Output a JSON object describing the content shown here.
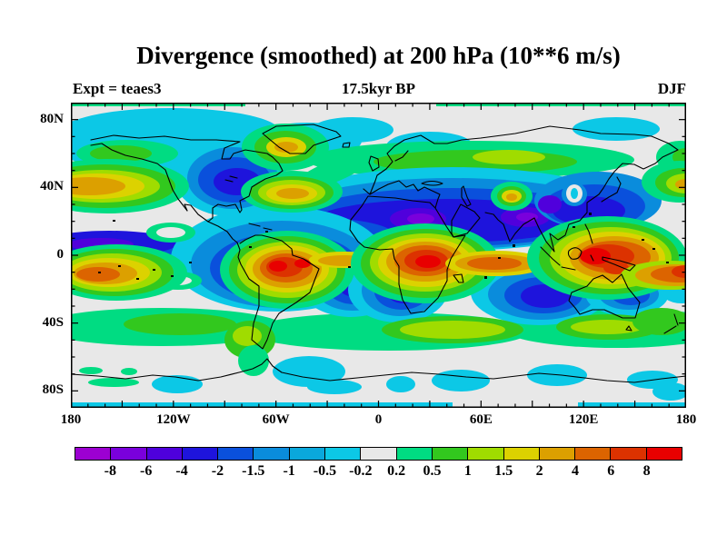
{
  "header": {
    "title": "Divergence (smoothed) at 200 hPa (10**6 m/s)",
    "subtitle": "17.5kyr BP",
    "experiment": "Expt = teaes3",
    "season": "DJF"
  },
  "chart_data": {
    "type": "heatmap",
    "variant": "filled_contour_world_map",
    "projection": "equirectangular",
    "title": "Divergence (smoothed) at 200 hPa (10**6 m/s)",
    "subtitle": "17.5kyr BP",
    "experiment": "teaes3",
    "season": "DJF",
    "units": "10**6 m/s",
    "grid": false,
    "lon_range": [
      -180,
      180
    ],
    "lat_range": [
      -90,
      90
    ],
    "x_ticks": {
      "labels": [
        "180",
        "120W",
        "60W",
        "0",
        "60E",
        "120E",
        "180"
      ],
      "lons": [
        -180,
        -120,
        -60,
        0,
        60,
        120,
        180
      ],
      "minor_step_deg": 10
    },
    "y_ticks": {
      "labels": [
        "80N",
        "40N",
        "0",
        "40S",
        "80S"
      ],
      "lats": [
        80,
        40,
        0,
        -40,
        -80
      ],
      "minor_step_deg": 10
    },
    "colorbar": {
      "boundary_labels": [
        "-8",
        "-6",
        "-4",
        "-2",
        "-1.5",
        "-1",
        "-0.5",
        "-0.2",
        "0.2",
        "0.5",
        "1",
        "1.5",
        "2",
        "4",
        "6",
        "8"
      ],
      "levels": [
        -8,
        -6,
        -4,
        -2,
        -1.5,
        -1,
        -0.5,
        -0.2,
        0.2,
        0.5,
        1,
        1.5,
        2,
        4,
        6,
        8
      ],
      "colors": [
        "#9C00D2",
        "#7A00DC",
        "#4E00DC",
        "#1E14DC",
        "#0A50DC",
        "#0A8CDC",
        "#0AA8DC",
        "#0CC8E6",
        "#E8E8E8",
        "#00DC82",
        "#32C81E",
        "#A0DC00",
        "#DCD200",
        "#DCA000",
        "#DC6400",
        "#DC3200",
        "#E80000"
      ],
      "neutral_band": [
        -0.2,
        0.2
      ]
    },
    "features": [
      {
        "region": "North Pacific jet (30-50N, 150E-130W)",
        "sign": "positive",
        "peak_level": 4
      },
      {
        "region": "Central North America (35-55N)",
        "sign": "negative",
        "peak_level": -2
      },
      {
        "region": "Subtropical North Atlantic (25-40N)",
        "sign": "positive",
        "peak_level": 4
      },
      {
        "region": "Baffin/Greenland (~65N 55W)",
        "sign": "positive",
        "peak_level": 4
      },
      {
        "region": "North Africa to East Asia band (10-35N)",
        "sign": "negative",
        "peak_level": -6
      },
      {
        "region": "Caribbean / tropical Atlantic (~10N)",
        "sign": "negative",
        "peak_level": -4
      },
      {
        "region": "Northern Eurasia (50-65N)",
        "sign": "positive",
        "peak_level": 1.5
      },
      {
        "region": "Tibetan Plateau spot (~33N 75E)",
        "sign": "positive",
        "peak_level": 4
      },
      {
        "region": "South America / Amazon",
        "sign": "positive",
        "peak_level": 8
      },
      {
        "region": "Central-southern Africa",
        "sign": "positive",
        "peak_level": 8
      },
      {
        "region": "Maritime Continent / west Pacific",
        "sign": "positive",
        "peak_level": 8
      },
      {
        "region": "South-central Pacific (5-20S, 175E-130W)",
        "sign": "positive",
        "peak_level": 6
      },
      {
        "region": "Eastern tropical Pacific (0-25S)",
        "sign": "negative",
        "peak_level": -6
      },
      {
        "region": "South Atlantic (10-30S)",
        "sign": "negative",
        "peak_level": -2
      },
      {
        "region": "Southern Africa (10-35S)",
        "sign": "negative",
        "peak_level": -4
      },
      {
        "region": "South Indian Ocean (15-35S)",
        "sign": "negative",
        "peak_level": -2
      },
      {
        "region": "Southern mid-latitude belt (35-50S)",
        "sign": "positive",
        "peak_level": 1.5
      },
      {
        "region": "Polar caps and 55-75S belt",
        "sign": "neutral",
        "peak_level": -0.5
      }
    ]
  }
}
